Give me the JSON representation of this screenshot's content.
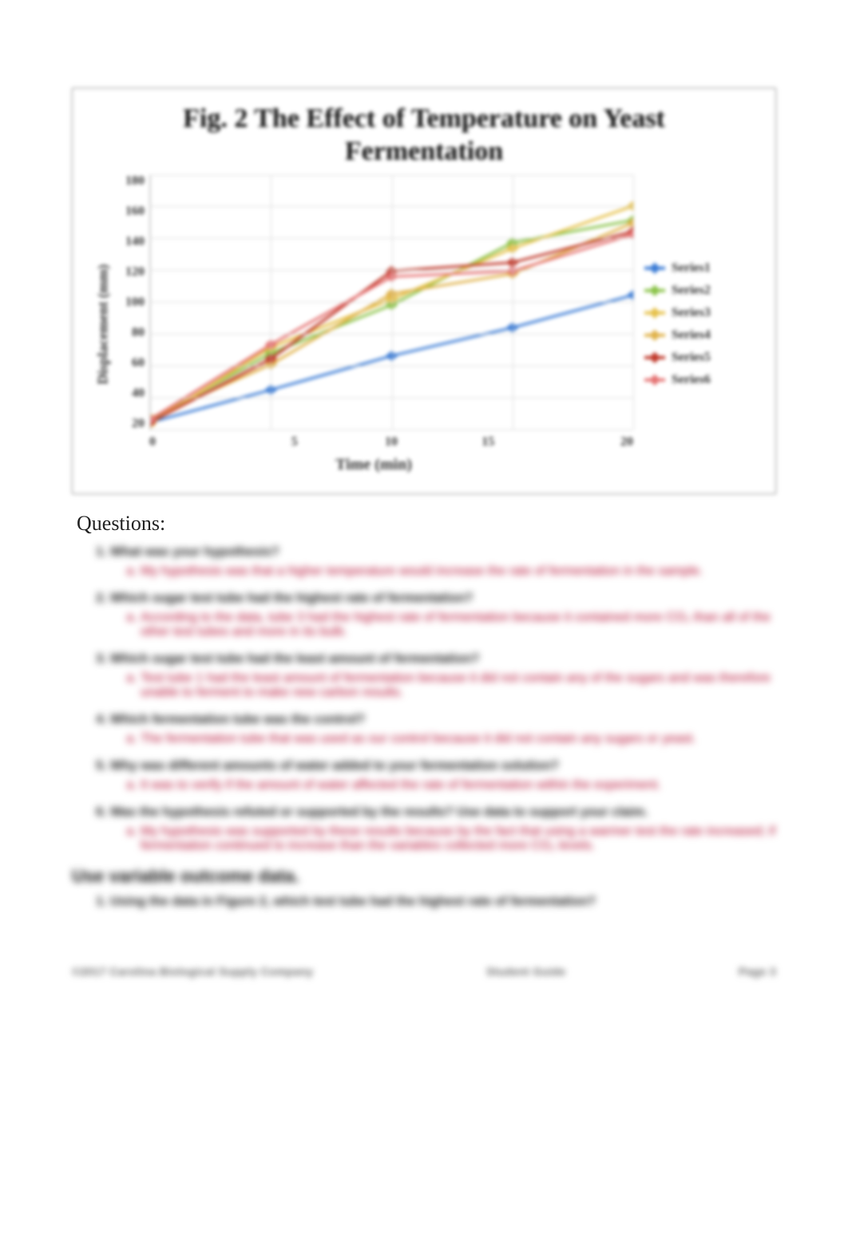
{
  "page": {
    "questions_header": "Questions:",
    "section_header": "Use variable outcome data.",
    "footer_left": "©2017 Carolina Biological Supply Company",
    "footer_center": "Student Guide",
    "footer_right": "Page 3"
  },
  "chart": {
    "type": "line",
    "title_line1": "Fig. 2 The Effect of Temperature on Yeast",
    "title_line2": "Fermentation",
    "xlabel": "Time (min)",
    "ylabel": "Displacement (mm)",
    "xlim": [
      0,
      20
    ],
    "ylim": [
      0,
      180
    ],
    "xtick_step": 5,
    "ytick_step": 30,
    "x_ticks": [
      "0",
      "5",
      "10",
      "15",
      "20"
    ],
    "y_ticks": [
      "180",
      "160",
      "140",
      "120",
      "100",
      "80",
      "60",
      "40",
      "20"
    ],
    "background_color": "#ffffff",
    "grid_color": "#d9d9d9",
    "title_fontsize": 34,
    "label_fontsize": 20,
    "line_width": 3,
    "marker_size": 9,
    "series": [
      {
        "name": "Series1",
        "color": "#3a7bd5",
        "values": [
          5,
          28,
          52,
          72,
          95
        ]
      },
      {
        "name": "Series2",
        "color": "#8bc34a",
        "values": [
          6,
          54,
          88,
          132,
          148
        ]
      },
      {
        "name": "Series3",
        "color": "#e6c14a",
        "values": [
          4,
          58,
          92,
          128,
          158
        ]
      },
      {
        "name": "Series4",
        "color": "#e0b24a",
        "values": [
          8,
          46,
          96,
          110,
          146
        ]
      },
      {
        "name": "Series5",
        "color": "#c0392b",
        "values": [
          5,
          50,
          112,
          118,
          140
        ]
      },
      {
        "name": "Series6",
        "color": "#e57373",
        "values": [
          7,
          60,
          108,
          112,
          138
        ]
      }
    ]
  },
  "qa": [
    {
      "q": "What was your hypothesis?",
      "a": "My hypothesis was that a higher temperature would increase the rate of fermentation in the sample."
    },
    {
      "q": "Which sugar test tube had the highest rate of fermentation?",
      "a": "According to the data, tube 3 had the highest rate of fermentation because it contained more CO₂ than all of the other test tubes and more in its bulb."
    },
    {
      "q": "Which sugar test tube had the least amount of fermentation?",
      "a": "Test tube 1 had the least amount of fermentation because it did not contain any of the sugars and was therefore unable to ferment to make new carbon results."
    },
    {
      "q": "Which fermentation tube was the control?",
      "a": "The fermentation tube that was used as our control because it did not contain any sugars or yeast."
    },
    {
      "q": "Why was different amounts of water added to your fermentation solution?",
      "a": "It was to verify if the amount of water affected the rate of fermentation within the experiment."
    },
    {
      "q": "Was the hypothesis refuted or supported by the results? Use data to support your claim.",
      "a": "My hypothesis was supported by these results because by the fact that using a warmer test the rate increased; if fermentation continued to increase than the variables collected more CO₂ levels."
    }
  ],
  "qa2": [
    {
      "q": "Using the data in Figure 2, which test tube had the highest rate of fermentation?"
    }
  ]
}
